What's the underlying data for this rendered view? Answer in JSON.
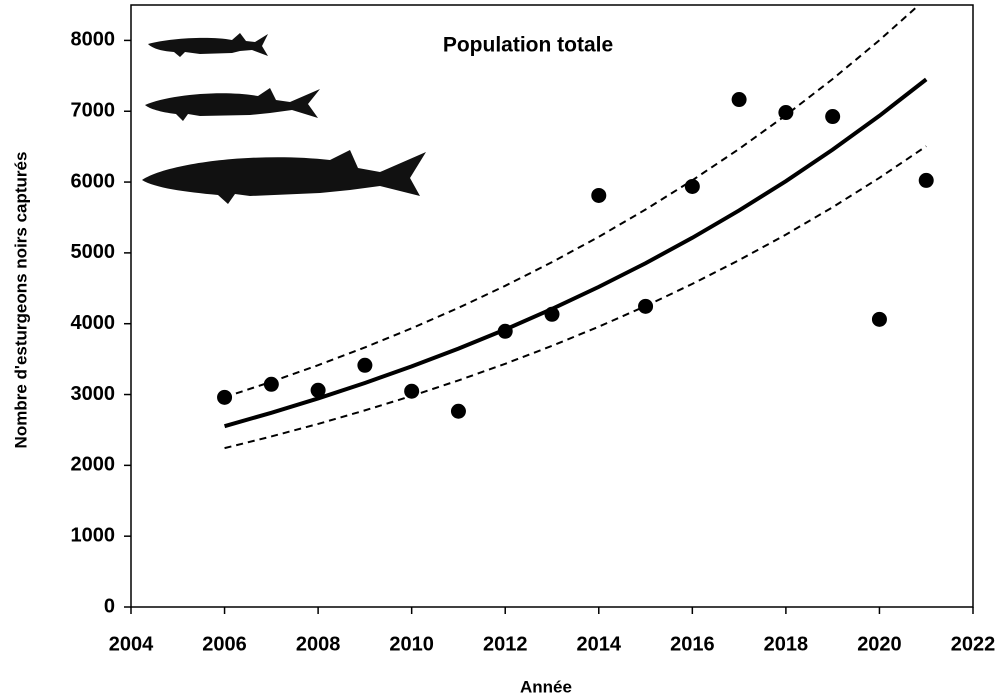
{
  "chart_data": {
    "type": "scatter",
    "annotation": "Population totale",
    "x_label": "Année",
    "y_label": "Nombre d'esturgeons  noirs capturés",
    "x": [
      2006,
      2007,
      2008,
      2009,
      2010,
      2011,
      2012,
      2013,
      2014,
      2015,
      2016,
      2017,
      2018,
      2019,
      2020,
      2021
    ],
    "series": [
      {
        "type": "scatter",
        "color": "#000000",
        "values": [
          2960,
          3145,
          3060,
          3413,
          3047,
          2764,
          3893,
          4133,
          5811,
          4245,
          5938,
          7165,
          6982,
          6925,
          4062,
          6023
        ]
      },
      {
        "type": "line",
        "style": "solid",
        "color": "#000000",
        "values": [
          2553,
          2742,
          2945,
          3163,
          3397,
          3648,
          3918,
          4208,
          4520,
          4854,
          5213,
          5599,
          6013,
          6458,
          6936,
          7450
        ]
      },
      {
        "type": "line",
        "style": "dashed",
        "color": "#000000",
        "values": [
          2962,
          3180,
          3414,
          3665,
          3935,
          4224,
          4535,
          4869,
          5227,
          5612,
          6025,
          6468,
          6944,
          7455,
          8003,
          8592
        ]
      },
      {
        "type": "line",
        "style": "dashed",
        "color": "#000000",
        "values": [
          2243,
          2408,
          2585,
          2776,
          2980,
          3199,
          3434,
          3687,
          3958,
          4249,
          4562,
          4898,
          5258,
          5645,
          6060,
          6506
        ]
      }
    ],
    "xlim": [
      2004,
      2022
    ],
    "ylim": [
      0,
      8500
    ],
    "xticks": [
      2004,
      2006,
      2008,
      2010,
      2012,
      2014,
      2016,
      2018,
      2020,
      2022
    ],
    "yticks": [
      0,
      1000,
      2000,
      3000,
      4000,
      5000,
      6000,
      7000,
      8000
    ],
    "grid": false
  }
}
